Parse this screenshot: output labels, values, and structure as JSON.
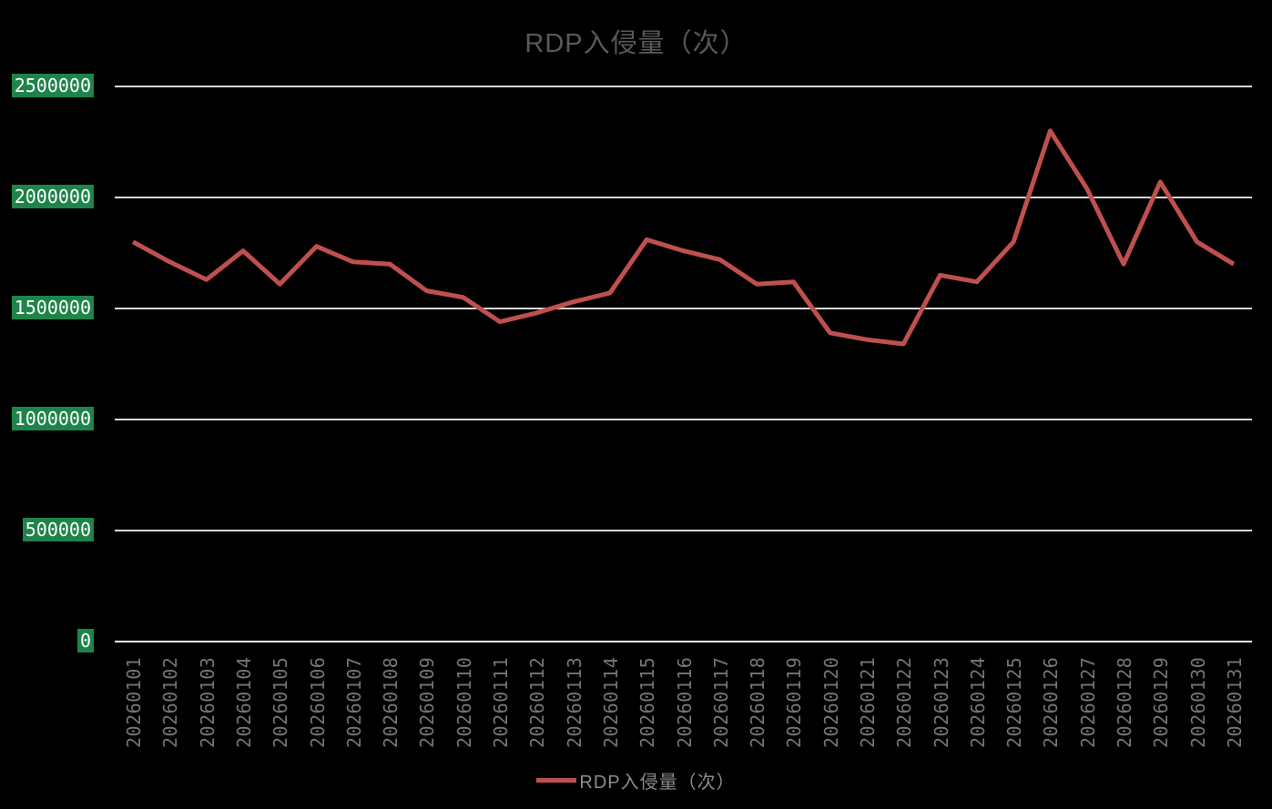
{
  "title": "RDP入侵量（次）",
  "legend": {
    "label": "RDP入侵量（次）"
  },
  "colors": {
    "background": "#000000",
    "line": "#C0504D",
    "gridline": "#D9D9D9",
    "axis_line": "#F2F2F2",
    "y_label_bg": "#1E8449",
    "y_label_text": "#FFFFFF",
    "x_label_text": "#767676",
    "title_text": "#595959",
    "legend_text": "#8C8C8C"
  },
  "chart_data": {
    "type": "line",
    "title": "RDP入侵量（次）",
    "xlabel": "",
    "ylabel": "",
    "categories": [
      "20260101",
      "20260102",
      "20260103",
      "20260104",
      "20260105",
      "20260106",
      "20260107",
      "20260108",
      "20260109",
      "20260110",
      "20260111",
      "20260112",
      "20260113",
      "20260114",
      "20260115",
      "20260116",
      "20260117",
      "20260118",
      "20260119",
      "20260120",
      "20260121",
      "20260122",
      "20260123",
      "20260124",
      "20260125",
      "20260126",
      "20260127",
      "20260128",
      "20260129",
      "20260130",
      "20260131"
    ],
    "series": [
      {
        "name": "RDP入侵量（次）",
        "values": [
          1800000,
          1710000,
          1630000,
          1760000,
          1610000,
          1780000,
          1710000,
          1700000,
          1580000,
          1550000,
          1440000,
          1480000,
          1530000,
          1570000,
          1810000,
          1760000,
          1720000,
          1610000,
          1620000,
          1390000,
          1360000,
          1340000,
          1650000,
          1620000,
          1800000,
          2300000,
          2040000,
          1700000,
          2070000,
          1800000,
          1700000
        ]
      }
    ],
    "ylim": [
      0,
      2500000
    ],
    "yticks": [
      0,
      500000,
      1000000,
      1500000,
      2000000,
      2500000
    ],
    "grid": "horizontal",
    "legend_position": "bottom"
  }
}
